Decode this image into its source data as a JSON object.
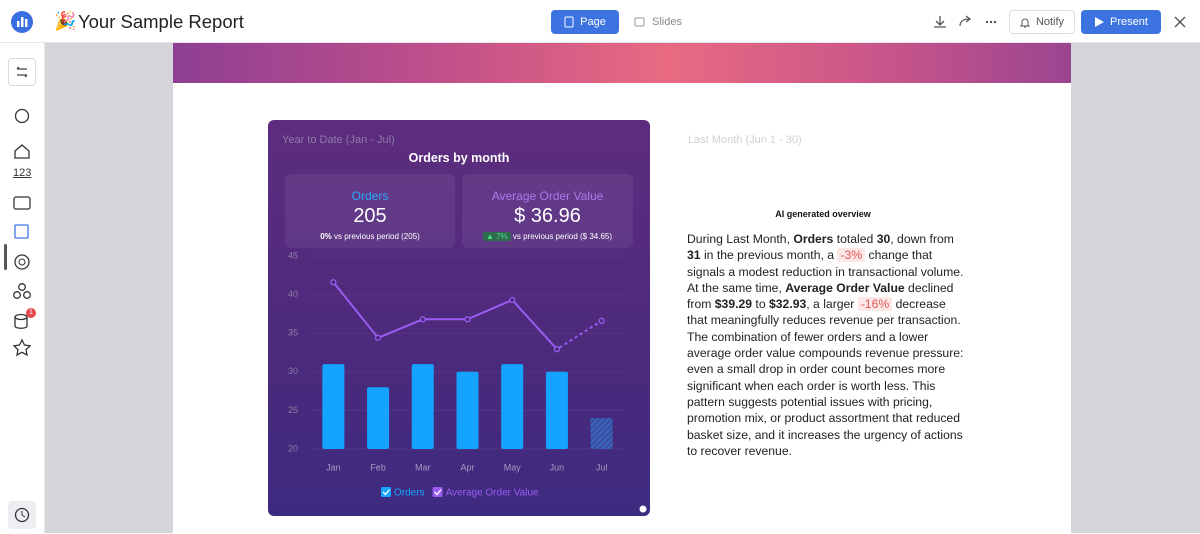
{
  "header": {
    "title": "Your Sample Report",
    "tabs": [
      "Page",
      "Slides"
    ],
    "notify": "Notify",
    "present": "Present"
  },
  "sidebar": {
    "numbers_icon": "123",
    "badge": "1"
  },
  "card": {
    "period": "Year to Date (Jan - Jul)",
    "kpis": [
      {
        "label": "Orders",
        "value": "205",
        "change": "0%",
        "comparison": "vs previous period (205)"
      },
      {
        "label": "Average Order Value",
        "value": "$ 36.96",
        "change": "▲ 7%",
        "comparison": "vs previous period ($ 34.65)"
      }
    ]
  },
  "chart_data": {
    "type": "bar-line",
    "title": "Orders by month",
    "categories": [
      "Jan",
      "Feb",
      "Mar",
      "Apr",
      "May",
      "Jun",
      "Jul"
    ],
    "series": [
      {
        "name": "Orders",
        "type": "bar",
        "color": "#14a4ff",
        "values": [
          31,
          28,
          31,
          30,
          31,
          30,
          24
        ]
      },
      {
        "name": "Average Order Value",
        "type": "line",
        "color": "#9a5cf0",
        "values": [
          41.6,
          34.4,
          36.8,
          36.8,
          39.3,
          32.93,
          36.6
        ]
      }
    ],
    "ylim": [
      20,
      45
    ],
    "yticks": [
      20,
      25,
      30,
      35,
      40,
      45
    ],
    "grid": true,
    "last_projected": true,
    "legend": "bottom"
  },
  "overview": {
    "period": "Last Month (Jun 1 - 30)",
    "heading": "AI generated overview",
    "paragraph": [
      "During Last Month, ",
      "Orders",
      " totaled ",
      "30",
      ", down from ",
      "31",
      " in the previous month, a ",
      "-3%",
      " change that signals a modest reduction in transactional volume. At the same time, ",
      "Average Order Value",
      " declined from ",
      "$39.29",
      " to ",
      "$32.93",
      ", a larger ",
      "-16%",
      " decrease that meaningfully reduces revenue per transaction. The combination of fewer orders and a lower average order value compounds revenue pressure: even a small drop in order count becomes more significant when each order is worth less. This pattern suggests potential issues with pricing, promotion mix, or product assortment that reduced basket size, and it increases the urgency of actions to recover revenue."
    ]
  }
}
